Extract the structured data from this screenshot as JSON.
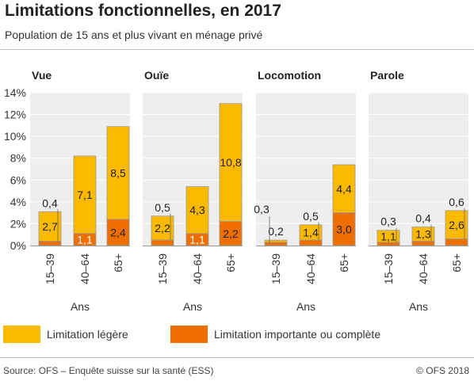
{
  "header": {
    "title": "Limitations fonctionnelles, en 2017",
    "subtitle": "Population de 15 ans et plus vivant en ménage privé"
  },
  "chart_data": {
    "type": "bar",
    "stacked": true,
    "ylim": [
      0,
      14
    ],
    "yticks": [
      0,
      2,
      4,
      6,
      8,
      10,
      12,
      14
    ],
    "ytick_labels": [
      "0%",
      "2%",
      "4%",
      "6%",
      "8%",
      "10%",
      "12%",
      "14%"
    ],
    "xlabel": "Ans",
    "categories": [
      "15–39",
      "40–64",
      "65+"
    ],
    "panels": [
      {
        "title": "Vue",
        "series": [
          {
            "name": "Limitation importante ou complète",
            "values": [
              0.4,
              1.1,
              2.4
            ],
            "labels": [
              "0,4",
              "1,1",
              "2,4"
            ]
          },
          {
            "name": "Limitation légère",
            "values": [
              2.7,
              7.1,
              8.5
            ],
            "labels": [
              "2,7",
              "7,1",
              "8,5"
            ]
          }
        ]
      },
      {
        "title": "Ouïe",
        "series": [
          {
            "name": "Limitation importante ou complète",
            "values": [
              0.5,
              1.1,
              2.2
            ],
            "labels": [
              "0,5",
              "1,1",
              "2,2"
            ]
          },
          {
            "name": "Limitation légère",
            "values": [
              2.2,
              4.3,
              10.8
            ],
            "labels": [
              "2,2",
              "4,3",
              "10,8"
            ]
          }
        ]
      },
      {
        "title": "Locomotion",
        "series": [
          {
            "name": "Limitation importante ou complète",
            "values": [
              0.3,
              0.5,
              3.0
            ],
            "labels": [
              "0,3",
              "0,5",
              "3,0"
            ]
          },
          {
            "name": "Limitation légère",
            "values": [
              0.2,
              1.4,
              4.4
            ],
            "labels": [
              "0,2",
              "1,4",
              "4,4"
            ]
          }
        ]
      },
      {
        "title": "Parole",
        "series": [
          {
            "name": "Limitation importante ou complète",
            "values": [
              0.3,
              0.4,
              0.6
            ],
            "labels": [
              "0,3",
              "0,4",
              "0,6"
            ]
          },
          {
            "name": "Limitation légère",
            "values": [
              1.1,
              1.3,
              2.6
            ],
            "labels": [
              "1,1",
              "1,3",
              "2,6"
            ]
          }
        ]
      }
    ],
    "legend": {
      "position": "bottom",
      "items": [
        {
          "label": "Limitation légère",
          "color": "#fbb900"
        },
        {
          "label": "Limitation importante ou complète",
          "color": "#ee6f00"
        }
      ]
    },
    "colors": {
      "light": "#fbb900",
      "severe": "#ee6f00",
      "panel_bg": "#eeeeee",
      "grid": "#ffffff",
      "bar_outline": "#999999"
    }
  },
  "footer": {
    "source": "Source: OFS – Enquête suisse sur la santé (ESS)",
    "copyright": "© OFS 2018"
  }
}
